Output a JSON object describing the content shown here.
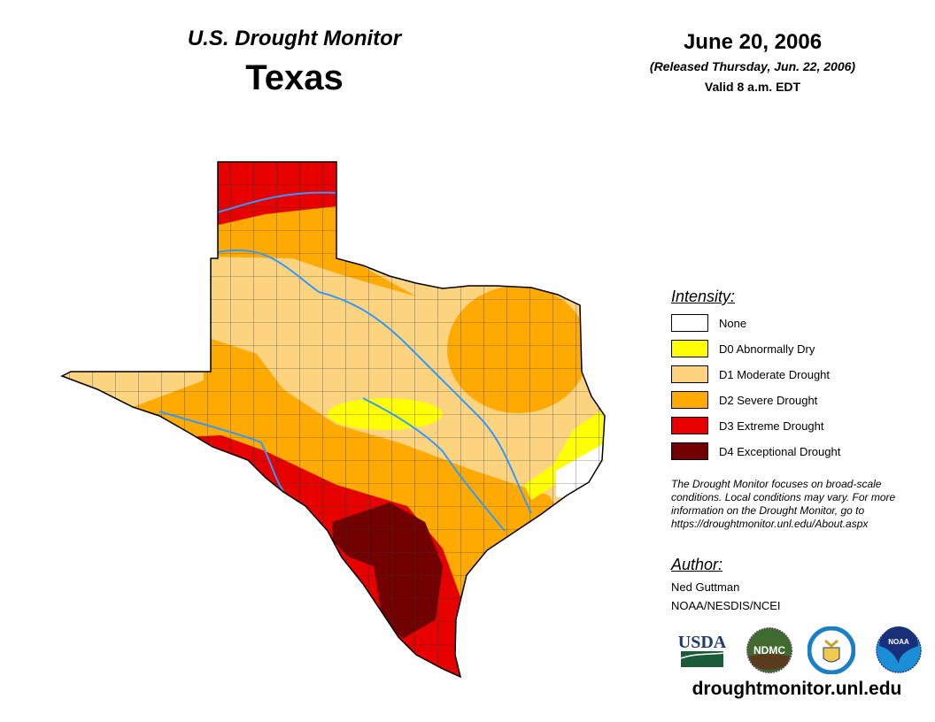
{
  "header": {
    "title": "U.S. Drought Monitor",
    "region": "Texas",
    "date": "June 20, 2006",
    "released": "(Released Thursday, Jun. 22, 2006)",
    "valid": "Valid 8 a.m. EDT"
  },
  "legend": {
    "title": "Intensity:",
    "items": [
      {
        "label": "None",
        "color": "#FFFFFF"
      },
      {
        "label": "D0 Abnormally Dry",
        "color": "#FFFF00"
      },
      {
        "label": "D1 Moderate Drought",
        "color": "#FCD37F"
      },
      {
        "label": "D2 Severe Drought",
        "color": "#FFAA00"
      },
      {
        "label": "D3 Extreme Drought",
        "color": "#E60000"
      },
      {
        "label": "D4 Exceptional Drought",
        "color": "#730000"
      }
    ]
  },
  "note": "The Drought Monitor focuses on broad-scale conditions. Local conditions may vary. For more information on the Drought Monitor, go to https://droughtmonitor.unl.edu/About.aspx",
  "author": {
    "title": "Author:",
    "name": "Ned Guttman",
    "org": "NOAA/NESDIS/NCEI"
  },
  "logos": {
    "usda": "USDA",
    "ndmc": "NDMC",
    "noaa": "NOAA"
  },
  "footer": {
    "url": "droughtmonitor.unl.edu"
  },
  "colors": {
    "river": "#3399FF",
    "county_line": "#333333"
  }
}
